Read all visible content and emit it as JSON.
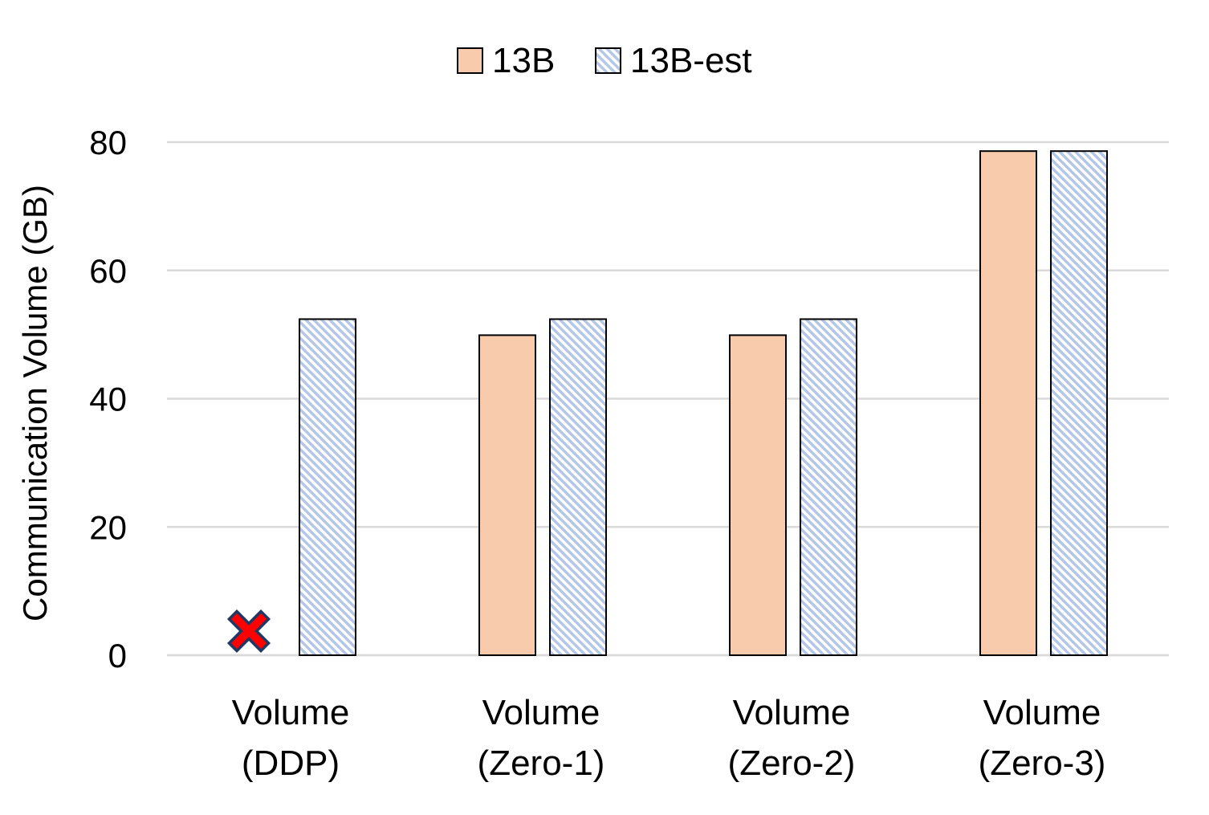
{
  "chart_data": {
    "type": "bar",
    "title": "",
    "xlabel": "",
    "ylabel": "Communication Volume (GB)",
    "ylim": [
      0,
      80
    ],
    "yticks": [
      0,
      20,
      40,
      60,
      80
    ],
    "grid": true,
    "legend_position": "top-center",
    "categories": [
      [
        "Volume",
        "(DDP)"
      ],
      [
        "Volume",
        "(Zero-1)"
      ],
      [
        "Volume",
        "(Zero-2)"
      ],
      [
        "Volume",
        "(Zero-3)"
      ]
    ],
    "series": [
      {
        "name": "13B",
        "values": [
          null,
          49.9,
          49.9,
          78.6
        ],
        "color": "#f8cbad",
        "pattern": "solid"
      },
      {
        "name": "13B-est",
        "values": [
          52.4,
          52.4,
          52.4,
          78.6
        ],
        "color": "#b4c7e7",
        "pattern": "diagonal-hatch"
      }
    ],
    "annotations": [
      {
        "type": "cross-marker",
        "category_index": 0,
        "series_index": 0,
        "meaning": "missing",
        "color": "#ff0000"
      }
    ]
  }
}
